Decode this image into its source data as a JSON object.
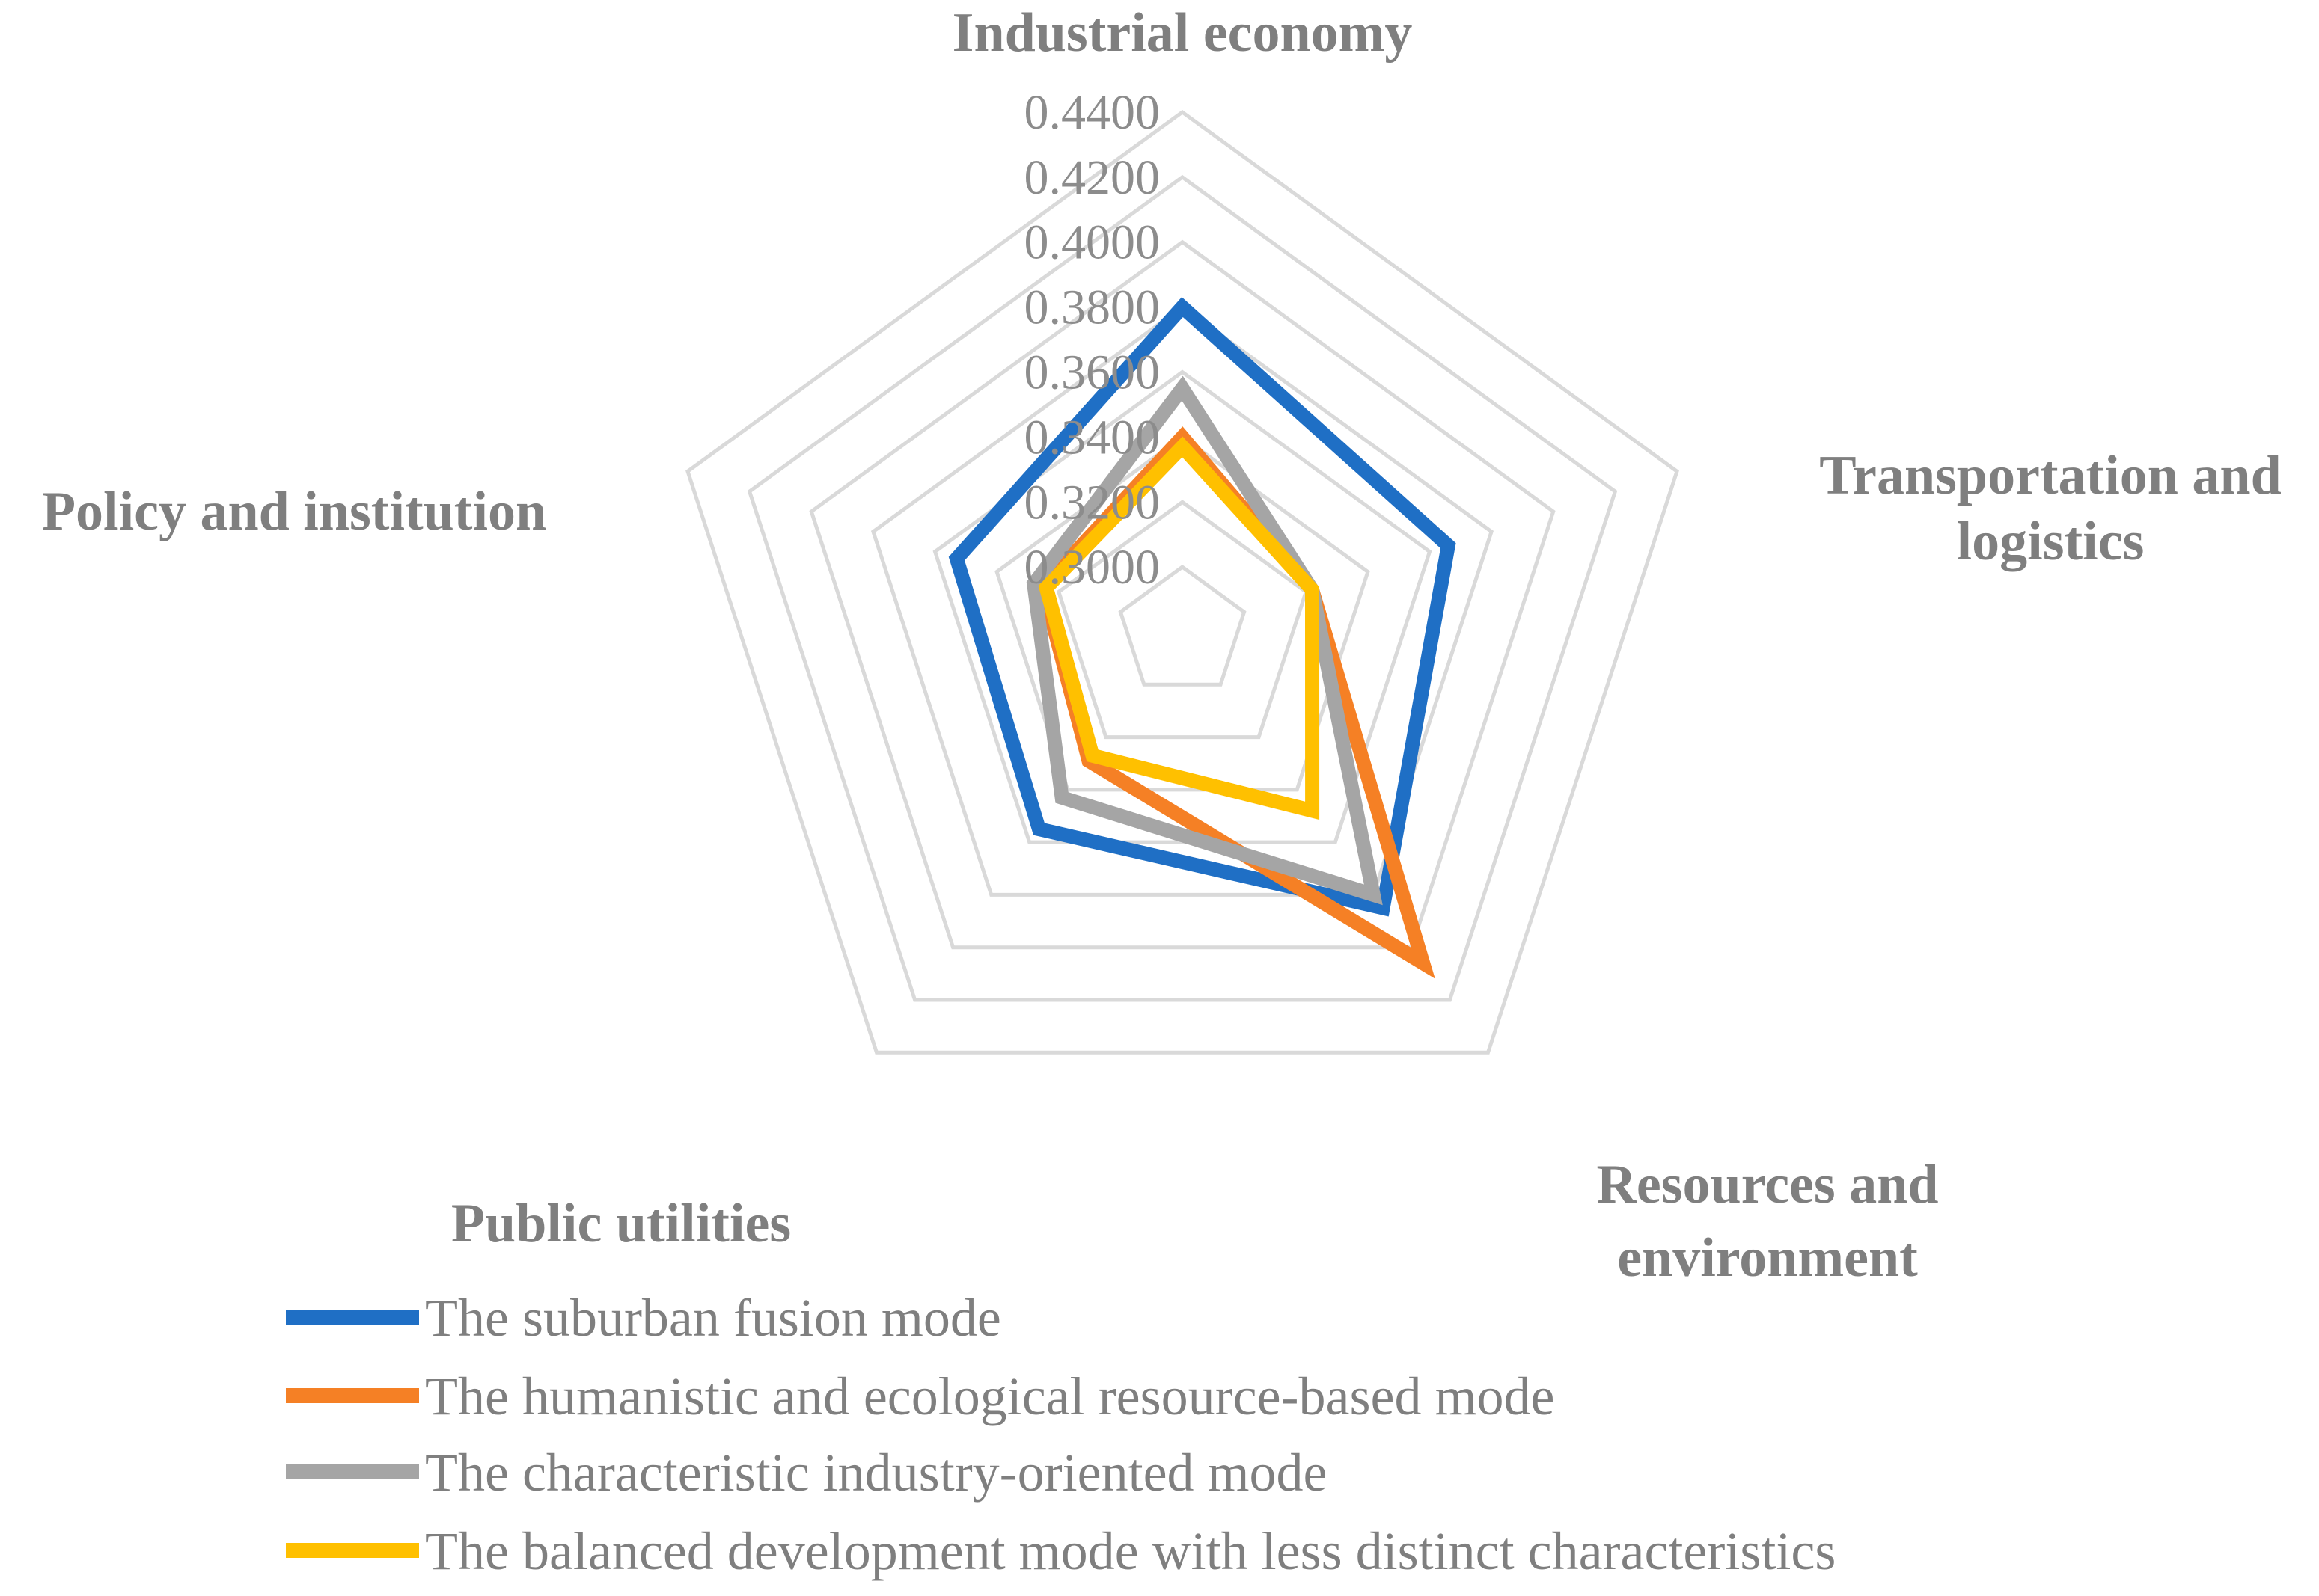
{
  "chart_data": {
    "type": "radar",
    "title": "",
    "axes": [
      "Industrial economy",
      "Transportation and logistics",
      "Resources and environment",
      "Public utilities",
      "Policy and institution"
    ],
    "axis_label_lines": [
      [
        "Industrial economy"
      ],
      [
        "Transportation and",
        "logistics"
      ],
      [
        "Resources and",
        "environment"
      ],
      [
        "Public utilities"
      ],
      [
        "Policy and institution"
      ]
    ],
    "rlim": [
      0.28,
      0.44
    ],
    "ticks": [
      0.3,
      0.32,
      0.34,
      0.36,
      0.38,
      0.4,
      0.42,
      0.44
    ],
    "tick_labels": [
      "0.3000",
      "0.3200",
      "0.3400",
      "0.3600",
      "0.3800",
      "0.4000",
      "0.4200",
      "0.4400"
    ],
    "grid": true,
    "legend_position": "bottom",
    "series": [
      {
        "name": "The suburban fusion mode",
        "color": "#1f6fc5",
        "values": [
          0.38,
          0.366,
          0.385,
          0.355,
          0.353
        ]
      },
      {
        "name": "The humanistic and ecological resource-based mode",
        "color": "#f58025",
        "values": [
          0.34,
          0.322,
          0.406,
          0.329,
          0.325
        ]
      },
      {
        "name": "The characteristic industry-oriented mode",
        "color": "#a5a5a5",
        "values": [
          0.355,
          0.322,
          0.38,
          0.343,
          0.328
        ]
      },
      {
        "name": "The balanced development mode with less distinct characteristics",
        "color": "#ffc000",
        "values": [
          0.337,
          0.322,
          0.348,
          0.327,
          0.324
        ]
      }
    ]
  }
}
